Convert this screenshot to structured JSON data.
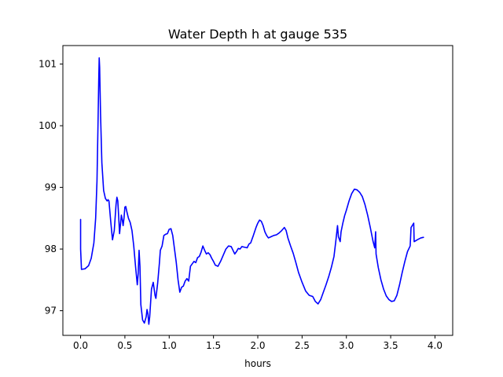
{
  "chart_data": {
    "type": "line",
    "title": "Water Depth h at gauge 535",
    "xlabel": "hours",
    "ylabel": "",
    "xlim": [
      -0.2,
      4.2
    ],
    "ylim": [
      96.6,
      101.3
    ],
    "xticks": [
      0.0,
      0.5,
      1.0,
      1.5,
      2.0,
      2.5,
      3.0,
      3.5,
      4.0
    ],
    "xtick_labels": [
      "0.0",
      "0.5",
      "1.0",
      "1.5",
      "2.0",
      "2.5",
      "3.0",
      "3.5",
      "4.0"
    ],
    "yticks": [
      97,
      98,
      99,
      100,
      101
    ],
    "ytick_labels": [
      "97",
      "98",
      "99",
      "100",
      "101"
    ],
    "grid": false,
    "line_color": "#0000ff",
    "series": [
      {
        "values": [
          [
            0.0,
            98.48
          ],
          [
            0.0,
            98.0
          ],
          [
            0.01,
            97.67
          ],
          [
            0.05,
            97.68
          ],
          [
            0.09,
            97.73
          ],
          [
            0.12,
            97.85
          ],
          [
            0.15,
            98.1
          ],
          [
            0.17,
            98.5
          ],
          [
            0.185,
            99.1
          ],
          [
            0.195,
            99.9
          ],
          [
            0.205,
            100.75
          ],
          [
            0.21,
            101.1
          ],
          [
            0.215,
            100.95
          ],
          [
            0.225,
            100.2
          ],
          [
            0.24,
            99.4
          ],
          [
            0.26,
            98.95
          ],
          [
            0.28,
            98.82
          ],
          [
            0.3,
            98.78
          ],
          [
            0.31,
            98.8
          ],
          [
            0.32,
            98.78
          ],
          [
            0.34,
            98.45
          ],
          [
            0.36,
            98.15
          ],
          [
            0.38,
            98.3
          ],
          [
            0.4,
            98.72
          ],
          [
            0.41,
            98.84
          ],
          [
            0.42,
            98.78
          ],
          [
            0.43,
            98.52
          ],
          [
            0.44,
            98.25
          ],
          [
            0.46,
            98.55
          ],
          [
            0.47,
            98.48
          ],
          [
            0.48,
            98.38
          ],
          [
            0.49,
            98.5
          ],
          [
            0.5,
            98.68
          ],
          [
            0.51,
            98.69
          ],
          [
            0.52,
            98.62
          ],
          [
            0.54,
            98.5
          ],
          [
            0.56,
            98.43
          ],
          [
            0.58,
            98.3
          ],
          [
            0.6,
            98.05
          ],
          [
            0.62,
            97.72
          ],
          [
            0.64,
            97.42
          ],
          [
            0.65,
            97.6
          ],
          [
            0.66,
            97.98
          ],
          [
            0.67,
            97.72
          ],
          [
            0.68,
            97.1
          ],
          [
            0.7,
            96.85
          ],
          [
            0.72,
            96.8
          ],
          [
            0.74,
            96.9
          ],
          [
            0.75,
            97.02
          ],
          [
            0.76,
            96.95
          ],
          [
            0.77,
            96.78
          ],
          [
            0.78,
            96.9
          ],
          [
            0.8,
            97.35
          ],
          [
            0.82,
            97.46
          ],
          [
            0.84,
            97.25
          ],
          [
            0.85,
            97.2
          ],
          [
            0.87,
            97.45
          ],
          [
            0.89,
            97.78
          ],
          [
            0.9,
            97.98
          ],
          [
            0.92,
            98.05
          ],
          [
            0.94,
            98.22
          ],
          [
            0.96,
            98.24
          ],
          [
            0.98,
            98.25
          ],
          [
            1.0,
            98.32
          ],
          [
            1.02,
            98.33
          ],
          [
            1.04,
            98.22
          ],
          [
            1.06,
            98.0
          ],
          [
            1.08,
            97.78
          ],
          [
            1.1,
            97.5
          ],
          [
            1.12,
            97.3
          ],
          [
            1.14,
            97.38
          ],
          [
            1.16,
            97.4
          ],
          [
            1.18,
            97.48
          ],
          [
            1.2,
            97.52
          ],
          [
            1.22,
            97.48
          ],
          [
            1.24,
            97.72
          ],
          [
            1.26,
            97.76
          ],
          [
            1.28,
            97.8
          ],
          [
            1.3,
            97.78
          ],
          [
            1.32,
            97.86
          ],
          [
            1.34,
            97.88
          ],
          [
            1.36,
            97.95
          ],
          [
            1.38,
            98.05
          ],
          [
            1.4,
            97.98
          ],
          [
            1.42,
            97.92
          ],
          [
            1.44,
            97.94
          ],
          [
            1.46,
            97.91
          ],
          [
            1.48,
            97.85
          ],
          [
            1.5,
            97.8
          ],
          [
            1.52,
            97.74
          ],
          [
            1.55,
            97.72
          ],
          [
            1.58,
            97.8
          ],
          [
            1.61,
            97.9
          ],
          [
            1.64,
            98.0
          ],
          [
            1.67,
            98.05
          ],
          [
            1.7,
            98.04
          ],
          [
            1.72,
            97.98
          ],
          [
            1.74,
            97.92
          ],
          [
            1.76,
            97.96
          ],
          [
            1.78,
            98.01
          ],
          [
            1.8,
            98.0
          ],
          [
            1.82,
            98.04
          ],
          [
            1.85,
            98.03
          ],
          [
            1.88,
            98.02
          ],
          [
            1.9,
            98.08
          ],
          [
            1.92,
            98.1
          ],
          [
            1.95,
            98.22
          ],
          [
            1.98,
            98.35
          ],
          [
            2.0,
            98.42
          ],
          [
            2.02,
            98.47
          ],
          [
            2.04,
            98.45
          ],
          [
            2.06,
            98.38
          ],
          [
            2.08,
            98.28
          ],
          [
            2.1,
            98.22
          ],
          [
            2.12,
            98.18
          ],
          [
            2.15,
            98.2
          ],
          [
            2.18,
            98.22
          ],
          [
            2.21,
            98.23
          ],
          [
            2.24,
            98.26
          ],
          [
            2.27,
            98.3
          ],
          [
            2.3,
            98.35
          ],
          [
            2.32,
            98.3
          ],
          [
            2.34,
            98.18
          ],
          [
            2.37,
            98.05
          ],
          [
            2.4,
            97.93
          ],
          [
            2.43,
            97.78
          ],
          [
            2.46,
            97.62
          ],
          [
            2.5,
            97.46
          ],
          [
            2.54,
            97.32
          ],
          [
            2.58,
            97.25
          ],
          [
            2.62,
            97.23
          ],
          [
            2.65,
            97.15
          ],
          [
            2.68,
            97.11
          ],
          [
            2.71,
            97.18
          ],
          [
            2.74,
            97.3
          ],
          [
            2.77,
            97.42
          ],
          [
            2.8,
            97.55
          ],
          [
            2.83,
            97.7
          ],
          [
            2.86,
            97.88
          ],
          [
            2.88,
            98.12
          ],
          [
            2.9,
            98.38
          ],
          [
            2.91,
            98.2
          ],
          [
            2.93,
            98.12
          ],
          [
            2.94,
            98.28
          ],
          [
            2.96,
            98.42
          ],
          [
            2.98,
            98.54
          ],
          [
            3.0,
            98.63
          ],
          [
            3.03,
            98.78
          ],
          [
            3.06,
            98.9
          ],
          [
            3.09,
            98.97
          ],
          [
            3.12,
            98.96
          ],
          [
            3.15,
            98.92
          ],
          [
            3.18,
            98.85
          ],
          [
            3.21,
            98.72
          ],
          [
            3.24,
            98.55
          ],
          [
            3.27,
            98.35
          ],
          [
            3.3,
            98.13
          ],
          [
            3.32,
            98.02
          ],
          [
            3.33,
            98.28
          ],
          [
            3.335,
            97.92
          ],
          [
            3.36,
            97.7
          ],
          [
            3.39,
            97.5
          ],
          [
            3.42,
            97.35
          ],
          [
            3.45,
            97.24
          ],
          [
            3.48,
            97.18
          ],
          [
            3.51,
            97.15
          ],
          [
            3.54,
            97.16
          ],
          [
            3.57,
            97.25
          ],
          [
            3.6,
            97.42
          ],
          [
            3.63,
            97.62
          ],
          [
            3.66,
            97.8
          ],
          [
            3.69,
            97.96
          ],
          [
            3.72,
            98.05
          ],
          [
            3.73,
            98.35
          ],
          [
            3.76,
            98.42
          ],
          [
            3.765,
            98.12
          ],
          [
            3.8,
            98.15
          ],
          [
            3.84,
            98.18
          ],
          [
            3.87,
            98.19
          ]
        ]
      }
    ]
  }
}
